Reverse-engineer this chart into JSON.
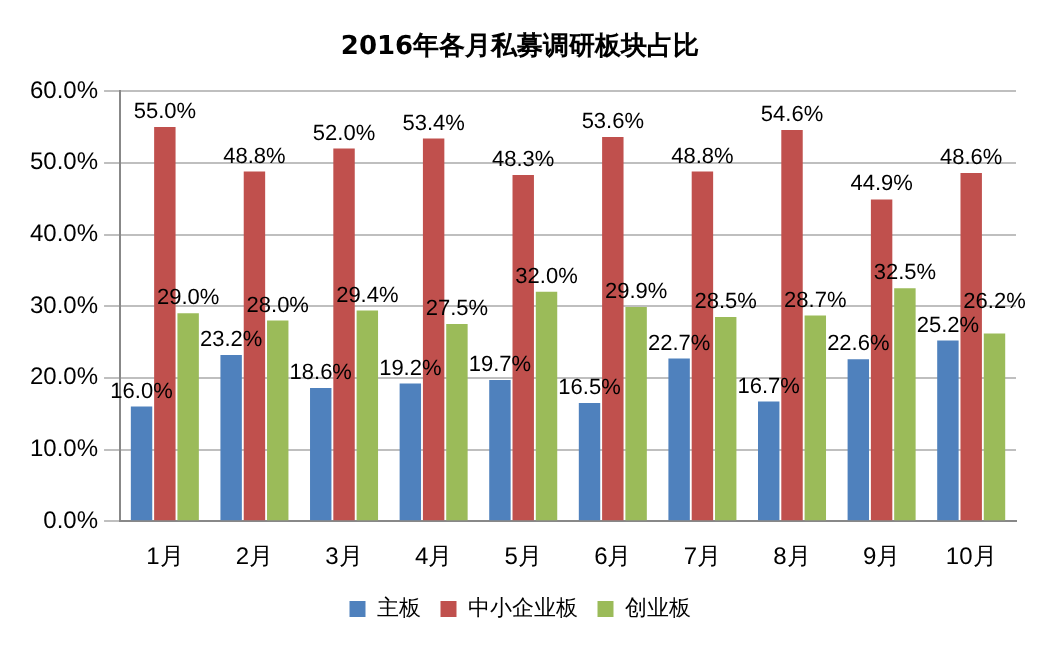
{
  "chart_data": {
    "type": "bar",
    "title": "2016年各月私募调研板块占比",
    "categories": [
      "1月",
      "2月",
      "3月",
      "4月",
      "5月",
      "6月",
      "7月",
      "8月",
      "9月",
      "10月"
    ],
    "series": [
      {
        "name": "主板",
        "color": "#4f81bd",
        "values": [
          16.0,
          23.2,
          18.6,
          19.2,
          19.7,
          16.5,
          22.7,
          16.7,
          22.6,
          25.2
        ],
        "value_labels": [
          "16.0%",
          "23.2%",
          "18.6%",
          "19.2%",
          "19.7%",
          "16.5%",
          "22.7%",
          "16.7%",
          "22.6%",
          "25.2%"
        ]
      },
      {
        "name": "中小企业板",
        "color": "#c0504d",
        "values": [
          55.0,
          48.8,
          52.0,
          53.4,
          48.3,
          53.6,
          48.8,
          54.6,
          44.9,
          48.6
        ],
        "value_labels": [
          "55.0%",
          "48.8%",
          "52.0%",
          "53.4%",
          "48.3%",
          "53.6%",
          "48.8%",
          "54.6%",
          "44.9%",
          "48.6%"
        ]
      },
      {
        "name": "创业板",
        "color": "#9bbb59",
        "values": [
          29.0,
          28.0,
          29.4,
          27.5,
          32.0,
          29.9,
          28.5,
          28.7,
          32.5,
          26.2
        ],
        "value_labels": [
          "29.0%",
          "28.0%",
          "29.4%",
          "27.5%",
          "32.0%",
          "29.9%",
          "28.5%",
          "28.7%",
          "32.5%",
          "26.2%"
        ]
      }
    ],
    "ylim": [
      0,
      60
    ],
    "yticks": [
      {
        "value": 0,
        "label": "0.0%"
      },
      {
        "value": 10,
        "label": "10.0%"
      },
      {
        "value": 20,
        "label": "20.0%"
      },
      {
        "value": 30,
        "label": "30.0%"
      },
      {
        "value": 40,
        "label": "40.0%"
      },
      {
        "value": 50,
        "label": "50.0%"
      },
      {
        "value": 60,
        "label": "60.0%"
      }
    ],
    "grid": "y",
    "legend": "bottom"
  }
}
